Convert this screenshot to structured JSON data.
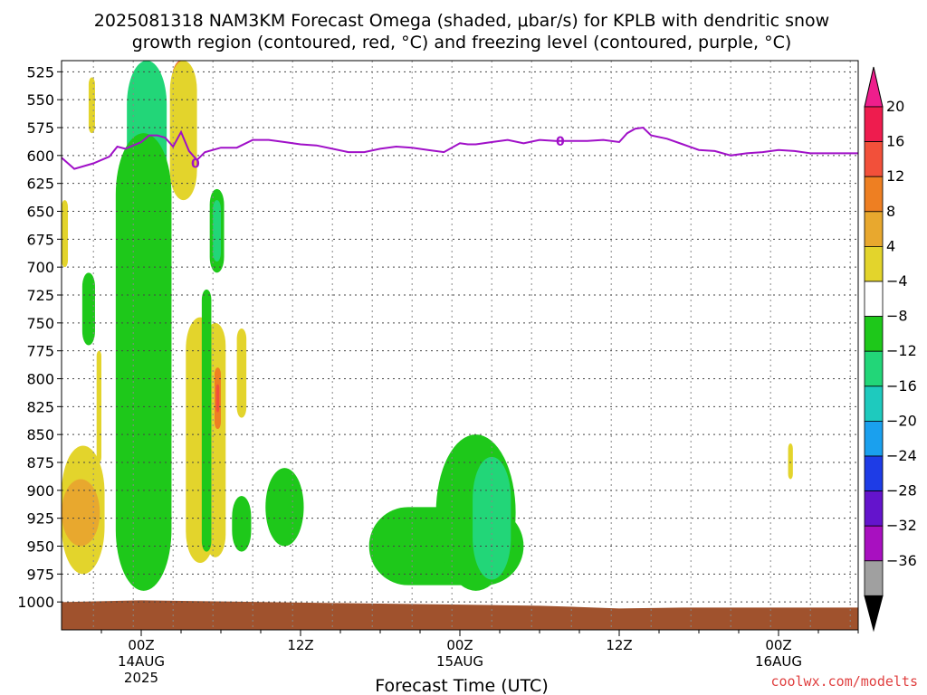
{
  "chart_data": {
    "type": "heatmap",
    "title_line1": "2025081318 NAM3KM Forecast Omega (shaded, μbar/s) for KPLB with dendritic snow",
    "title_line2": "growth region (contoured, red, °C) and freezing level (contoured, purple, °C)",
    "xlabel": "Forecast Time (UTC)",
    "credit": "coolwx.com/modelts",
    "y_ticks": [
      "525",
      "550",
      "575",
      "600",
      "625",
      "650",
      "675",
      "700",
      "725",
      "750",
      "775",
      "800",
      "825",
      "850",
      "875",
      "900",
      "925",
      "950",
      "975",
      "1000"
    ],
    "y_range_mb": [
      515,
      1025
    ],
    "x_range_hours": [
      -5,
      45
    ],
    "x_ticks": [
      {
        "hour": 0,
        "label": "00Z",
        "sub1": "14AUG",
        "sub2": "2025"
      },
      {
        "hour": 10,
        "label": "12Z",
        "sub1": "",
        "sub2": ""
      },
      {
        "hour": 20,
        "label": "00Z",
        "sub1": "15AUG",
        "sub2": ""
      },
      {
        "hour": 30,
        "label": "12Z",
        "sub1": "",
        "sub2": ""
      },
      {
        "hour": 40,
        "label": "00Z",
        "sub1": "16AUG",
        "sub2": ""
      }
    ],
    "colorbar": {
      "labels": [
        "20",
        "16",
        "12",
        "8",
        "4",
        "−4",
        "−8",
        "−12",
        "−16",
        "−20",
        "−24",
        "−28",
        "−32",
        "−36"
      ],
      "colors": [
        "#ee1c4e",
        "#f2503a",
        "#ee7f22",
        "#e8a82e",
        "#e3d42c",
        "#ffffff",
        "#1ec81a",
        "#22d678",
        "#1ecabe",
        "#1aa0ee",
        "#1e3ce6",
        "#6414cc",
        "#a810c0",
        "#a0a0a0"
      ],
      "top_triangle": "#ee1e8c",
      "bottom_triangle": "#000000"
    },
    "freezing_level": {
      "label": "0",
      "hours": [
        -5,
        -4.2,
        -3,
        -2,
        -1.5,
        -1,
        0,
        0.5,
        1,
        1.5,
        2,
        2.5,
        3,
        3.5,
        4,
        5,
        6,
        7,
        8,
        9,
        10,
        11,
        12,
        13,
        14,
        15,
        16,
        17,
        18,
        19,
        20,
        20.5,
        21,
        22,
        23,
        24,
        25,
        26,
        27,
        28,
        29,
        30,
        30.5,
        31,
        31.5,
        32,
        33,
        34,
        35,
        36,
        37,
        38,
        39,
        40,
        41,
        42,
        43,
        44,
        45
      ],
      "pressure_mb": [
        602,
        612,
        607,
        601,
        592,
        594,
        588,
        582,
        582,
        584,
        592,
        579,
        596,
        604,
        597,
        593,
        593,
        586,
        586,
        588,
        590,
        591,
        594,
        597,
        597,
        594,
        592,
        593,
        595,
        597,
        589,
        590,
        590,
        588,
        586,
        589,
        586,
        587,
        587,
        587,
        586,
        588,
        580,
        576,
        575,
        582,
        585,
        590,
        595,
        596,
        600,
        598,
        597,
        595,
        596,
        598,
        598,
        598,
        598
      ]
    },
    "omega_regions": [
      {
        "level": -36,
        "hours": [
          0,
          0.6
        ],
        "p_top": 515,
        "p_bot": 965,
        "color": "#000000"
      },
      {
        "level": -32,
        "hours": [
          -0.15,
          0.75
        ],
        "p_top": 515,
        "p_bot": 968,
        "color": "#a0a0a0"
      },
      {
        "level": -28,
        "hours": [
          -0.25,
          0.85
        ],
        "p_top": 515,
        "p_bot": 972,
        "color": "#a810c0"
      },
      {
        "level": -20,
        "hours": [
          -0.4,
          1.0
        ],
        "p_top": 515,
        "p_bot": 976,
        "color": "#1e3ce6"
      },
      {
        "level": -12,
        "hours": [
          -0.9,
          1.6
        ],
        "p_top": 515,
        "p_bot": 985,
        "color": "#22d678"
      },
      {
        "level": -8,
        "hours": [
          -1.6,
          1.9
        ],
        "p_top": 580,
        "p_bot": 990,
        "color": "#1ec81a"
      },
      {
        "level": 20,
        "hours": [
          2.0,
          2.9
        ],
        "p_top": 515,
        "p_bot": 570,
        "color": "#ee1e8c"
      },
      {
        "level": 12,
        "hours": [
          1.9,
          3.1
        ],
        "p_top": 515,
        "p_bot": 585,
        "color": "#ee7f22"
      },
      {
        "level": 8,
        "hours": [
          1.8,
          3.5
        ],
        "p_top": 515,
        "p_bot": 640,
        "color": "#e3d42c"
      },
      {
        "level": -8,
        "hours": [
          4.3,
          5.2
        ],
        "p_top": 630,
        "p_bot": 705,
        "color": "#1ec81a"
      },
      {
        "level": -12,
        "hours": [
          4.5,
          5.0
        ],
        "p_top": 640,
        "p_bot": 695,
        "color": "#22d678"
      },
      {
        "level": -8,
        "hours": [
          -3.7,
          -2.9
        ],
        "p_top": 705,
        "p_bot": 770,
        "color": "#1ec81a"
      },
      {
        "level": 4,
        "hours": [
          -2.8,
          -2.5
        ],
        "p_top": 775,
        "p_bot": 875,
        "color": "#e3d42c"
      },
      {
        "level": 4,
        "hours": [
          -3.3,
          -2.9
        ],
        "p_top": 530,
        "p_bot": 580,
        "color": "#e3d42c"
      },
      {
        "level": 4,
        "hours": [
          -5,
          -4.6
        ],
        "p_top": 640,
        "p_bot": 700,
        "color": "#e3d42c"
      },
      {
        "level": 4,
        "hours": [
          2.8,
          4.6
        ],
        "p_top": 745,
        "p_bot": 965,
        "color": "#e3d42c"
      },
      {
        "level": 8,
        "hours": [
          4.0,
          5.3
        ],
        "p_top": 750,
        "p_bot": 960,
        "color": "#e3d42c"
      },
      {
        "level": 12,
        "hours": [
          4.6,
          5.0
        ],
        "p_top": 790,
        "p_bot": 845,
        "color": "#ee7f22"
      },
      {
        "level": 16,
        "hours": [
          4.7,
          4.9
        ],
        "p_top": 805,
        "p_bot": 830,
        "color": "#f2503a"
      },
      {
        "level": -8,
        "hours": [
          3.8,
          4.4
        ],
        "p_top": 720,
        "p_bot": 955,
        "color": "#1ec81a"
      },
      {
        "level": 4,
        "hours": [
          6.0,
          6.6
        ],
        "p_top": 755,
        "p_bot": 835,
        "color": "#e3d42c"
      },
      {
        "level": -8,
        "hours": [
          5.7,
          6.9
        ],
        "p_top": 905,
        "p_bot": 955,
        "color": "#1ec81a"
      },
      {
        "level": -8,
        "hours": [
          7.8,
          10.2
        ],
        "p_top": 880,
        "p_bot": 950,
        "color": "#1ec81a"
      },
      {
        "level": 4,
        "hours": [
          -5,
          -2.3
        ],
        "p_top": 860,
        "p_bot": 975,
        "color": "#e3d42c"
      },
      {
        "level": 8,
        "hours": [
          -5,
          -2.6
        ],
        "p_top": 890,
        "p_bot": 950,
        "color": "#e8a82e"
      },
      {
        "level": -8,
        "hours": [
          14.3,
          24.0
        ],
        "p_top": 915,
        "p_bot": 985,
        "color": "#1ec81a"
      },
      {
        "level": -8,
        "hours": [
          18.5,
          23.5
        ],
        "p_top": 850,
        "p_bot": 990,
        "color": "#1ec81a"
      },
      {
        "level": -12,
        "hours": [
          20.8,
          23.2
        ],
        "p_top": 870,
        "p_bot": 980,
        "color": "#22d678"
      },
      {
        "level": 4,
        "hours": [
          40.6,
          40.9
        ],
        "p_top": 858,
        "p_bot": 890,
        "color": "#e3d42c"
      }
    ]
  }
}
